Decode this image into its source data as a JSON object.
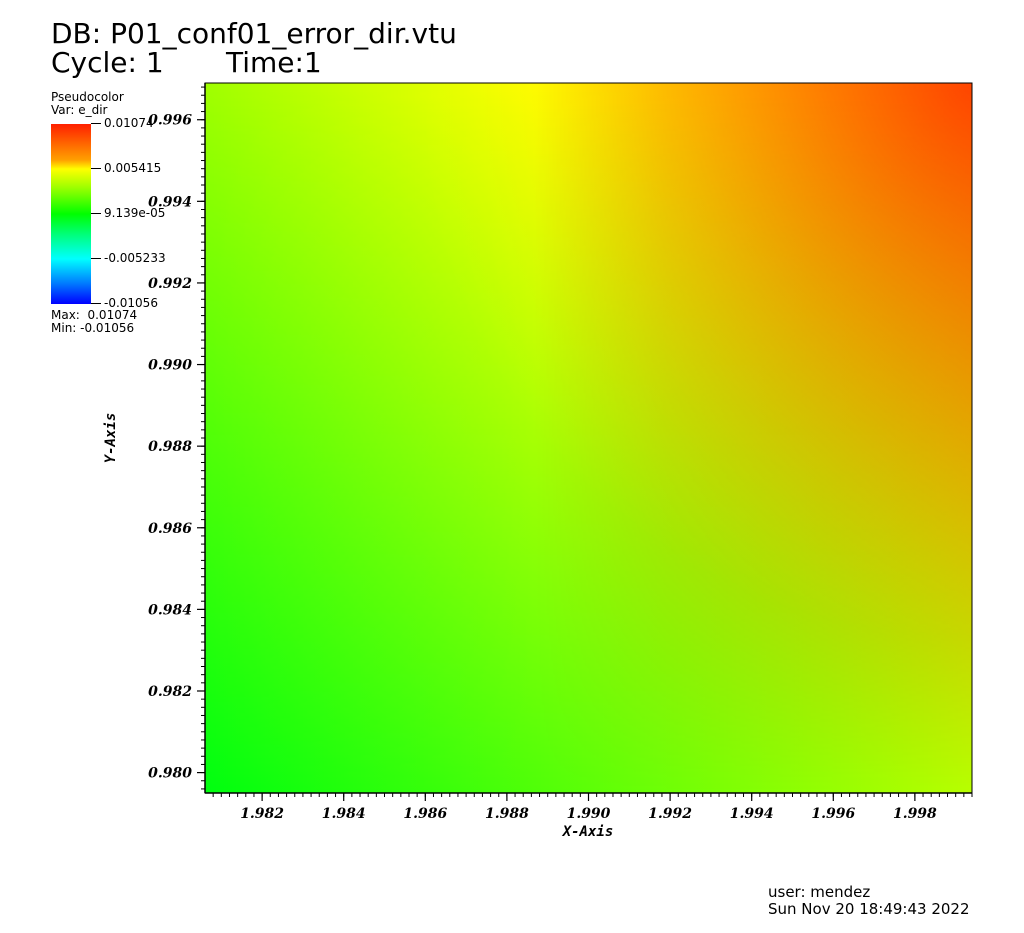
{
  "header": {
    "db": "DB: P01_conf01_error_dir.vtu",
    "cycle_time": "Cycle: 1       Time:1"
  },
  "legend": {
    "plot_type": "Pseudocolor",
    "var": "Var: e_dir",
    "ticks": [
      "0.01074",
      "0.005415",
      "9.139e-05",
      "-0.005233",
      "-0.01056"
    ],
    "max": "Max:  0.01074",
    "min": "Min: -0.01056",
    "colors": [
      "#ff2000",
      "#ffff00",
      "#00ff00",
      "#00ffff",
      "#0000ff"
    ]
  },
  "chart_data": {
    "type": "heatmap",
    "xlabel": "X-Axis",
    "ylabel": "Y-Axis",
    "xlim": [
      1.9806,
      1.9994
    ],
    "ylim": [
      0.9795,
      0.9969
    ],
    "x_ticks": [
      "1.982",
      "1.984",
      "1.986",
      "1.988",
      "1.990",
      "1.992",
      "1.994",
      "1.996",
      "1.998"
    ],
    "y_ticks": [
      "0.980",
      "0.982",
      "0.984",
      "0.986",
      "0.988",
      "0.990",
      "0.992",
      "0.994",
      "0.996"
    ],
    "variable": "e_dir",
    "value_range": [
      -0.01056,
      0.01074
    ],
    "corner_colors": {
      "top-left": "#a0ff00",
      "top-right": "#ff4a00",
      "bottom-left": "#00ff10",
      "bottom-right": "#b8ff00"
    }
  },
  "footer": {
    "user": "user: mendez",
    "date": "Sun Nov 20 18:49:43 2022"
  }
}
